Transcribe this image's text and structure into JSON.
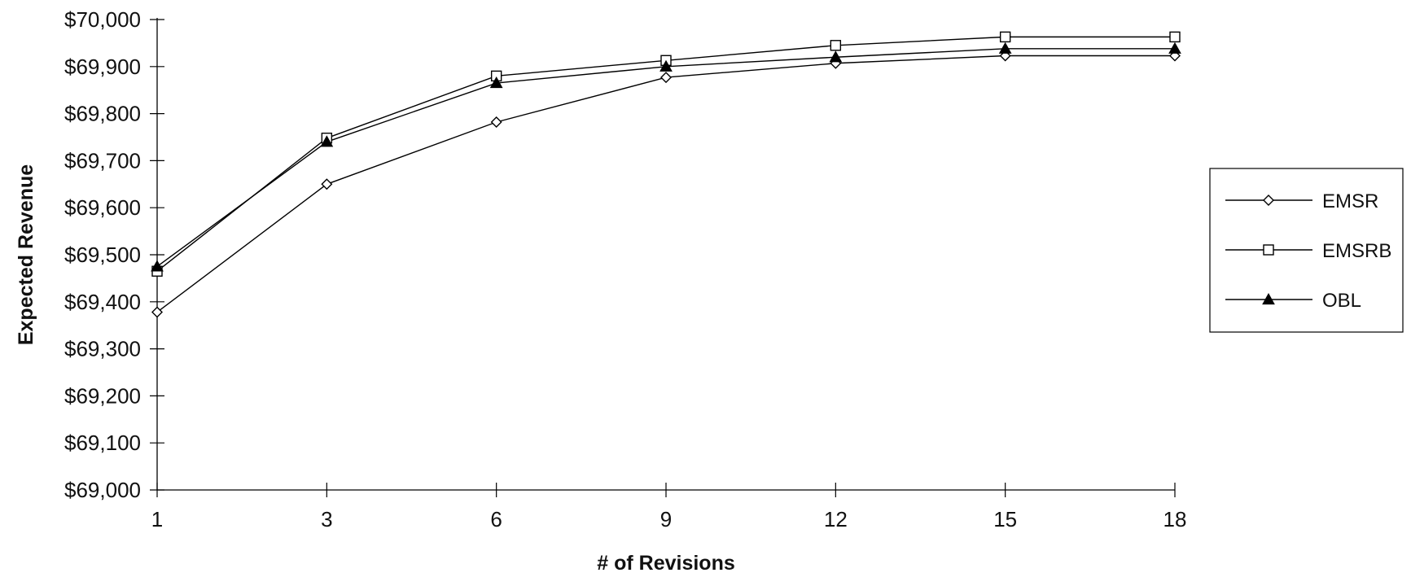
{
  "chart_data": {
    "type": "line",
    "title": "",
    "xlabel": "# of Revisions",
    "ylabel": "Expected Revenue",
    "categories": [
      "1",
      "3",
      "6",
      "9",
      "12",
      "15",
      "18"
    ],
    "ylim": [
      69000,
      70000
    ],
    "yticks": [
      69000,
      69100,
      69200,
      69300,
      69400,
      69500,
      69600,
      69700,
      69800,
      69900,
      70000
    ],
    "ytick_labels": [
      "$69,000",
      "$69,100",
      "$69,200",
      "$69,300",
      "$69,400",
      "$69,500",
      "$69,600",
      "$69,700",
      "$69,800",
      "$69,900",
      "$70,000"
    ],
    "grid": false,
    "legend_position": "right",
    "series": [
      {
        "name": "EMSR",
        "marker": "diamond",
        "values": [
          69378,
          69650,
          69782,
          69877,
          69907,
          69923,
          69923
        ]
      },
      {
        "name": "EMSRB",
        "marker": "square",
        "values": [
          69465,
          69748,
          69880,
          69913,
          69945,
          69963,
          69963
        ]
      },
      {
        "name": "OBL",
        "marker": "triangle",
        "values": [
          69475,
          69740,
          69865,
          69900,
          69920,
          69938,
          69938
        ]
      }
    ],
    "colors": {
      "line": "#000000",
      "background": "#ffffff"
    }
  }
}
